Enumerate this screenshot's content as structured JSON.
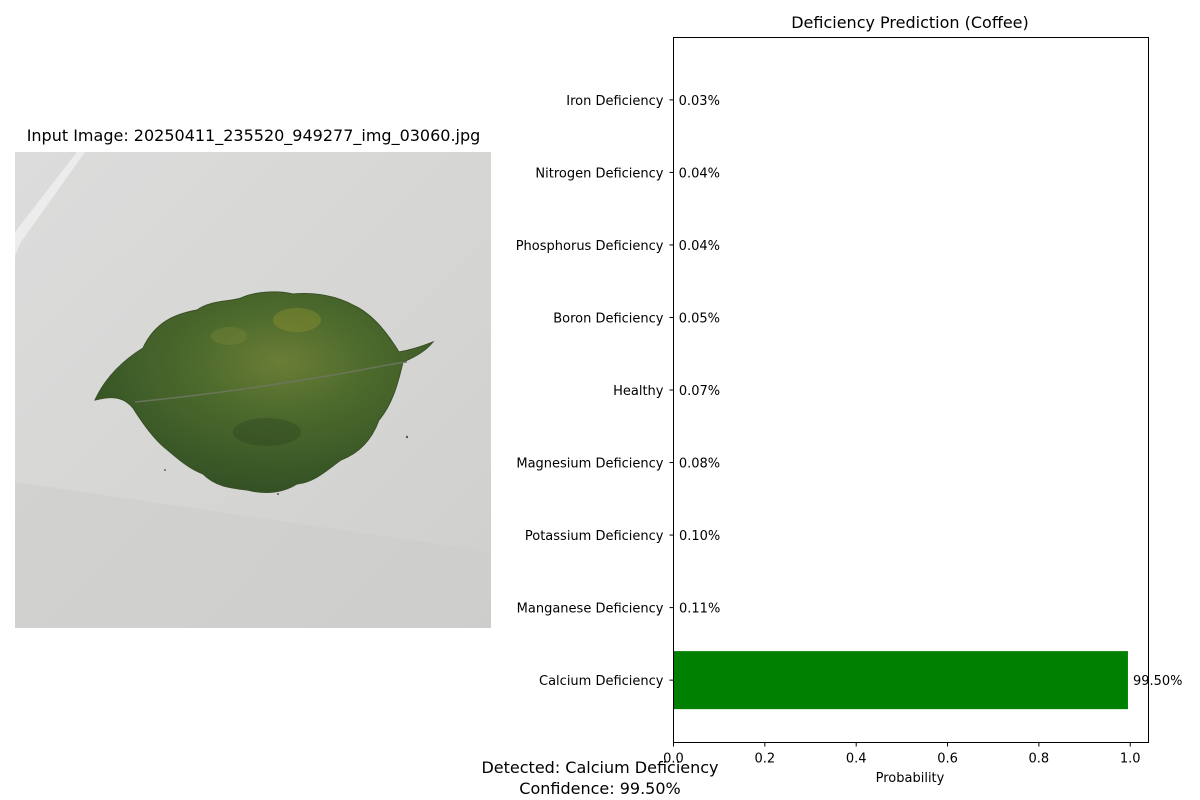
{
  "input_image": {
    "title": "Input Image: 20250411_235520_949277_img_03060.jpg"
  },
  "chart_data": {
    "type": "bar",
    "orientation": "horizontal",
    "title": "Deficiency Prediction (Coffee)",
    "xlabel": "Probability",
    "ylabel": "",
    "xlim": [
      0,
      1.04
    ],
    "xticks": [
      0.0,
      0.2,
      0.4,
      0.6,
      0.8,
      1.0
    ],
    "xtick_labels": [
      "0.0",
      "0.2",
      "0.4",
      "0.6",
      "0.8",
      "1.0"
    ],
    "grid": false,
    "categories": [
      "Calcium Deficiency",
      "Manganese Deficiency",
      "Potassium Deficiency",
      "Magnesium Deficiency",
      "Healthy",
      "Boron Deficiency",
      "Phosphorus Deficiency",
      "Nitrogen Deficiency",
      "Iron Deficiency"
    ],
    "values": [
      0.995,
      0.0011,
      0.001,
      0.0008,
      0.0007,
      0.0005,
      0.0004,
      0.0004,
      0.0003
    ],
    "data_labels": [
      "99.50%",
      "0.11%",
      "0.10%",
      "0.08%",
      "0.07%",
      "0.05%",
      "0.04%",
      "0.04%",
      "0.03%"
    ],
    "highlight_index": 0,
    "highlight_color": "#008000",
    "bar_color": "#808080"
  },
  "result": {
    "detected": "Detected: Calcium Deficiency",
    "confidence": "Confidence: 99.50%"
  }
}
